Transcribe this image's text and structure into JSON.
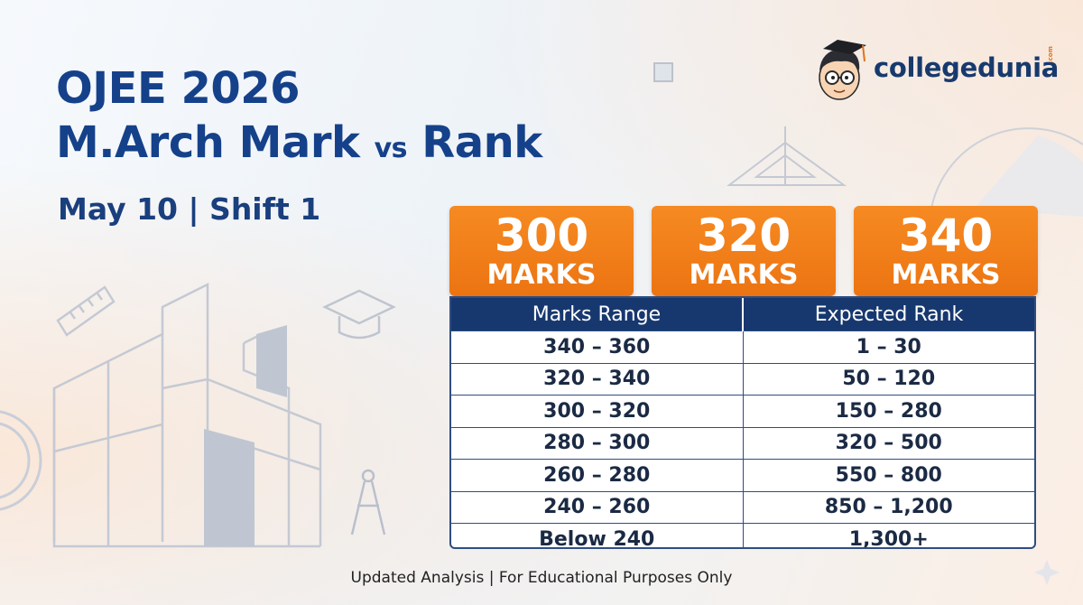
{
  "title": {
    "line1": "OJEE 2026",
    "line2_main": "M.Arch Mark",
    "line2_vs": "vs",
    "line2_end": "Rank"
  },
  "subtitle": "May 10 | Shift 1",
  "logo": {
    "text": "collegedunia",
    "suffix": ".com",
    "icon": "student-mascot-icon"
  },
  "marks_cards": [
    {
      "number": "300",
      "label": "MARKS"
    },
    {
      "number": "320",
      "label": "MARKS"
    },
    {
      "number": "340",
      "label": "MARKS"
    }
  ],
  "table": {
    "headers": [
      "Marks Range",
      "Expected Rank"
    ],
    "rows": [
      [
        "340 – 360",
        "1 – 30"
      ],
      [
        "320 – 340",
        "50 – 120"
      ],
      [
        "300 – 320",
        "150 – 280"
      ],
      [
        "280 – 300",
        "320 – 500"
      ],
      [
        "260 – 280",
        "550 – 800"
      ],
      [
        "240 – 260",
        "850 – 1,200"
      ],
      [
        "Below 240",
        "1,300+"
      ]
    ]
  },
  "footer": "Updated Analysis | For Educational Purposes Only",
  "colors": {
    "title": "#15418a",
    "orange": "#f07e1a",
    "navy": "#17386f"
  },
  "decorations": [
    "building-sketch-icon",
    "ruler-icon",
    "graduation-cap-icon",
    "compass-icon",
    "set-square-icon",
    "protractor-icon",
    "square-icon",
    "sparkle-icon"
  ]
}
